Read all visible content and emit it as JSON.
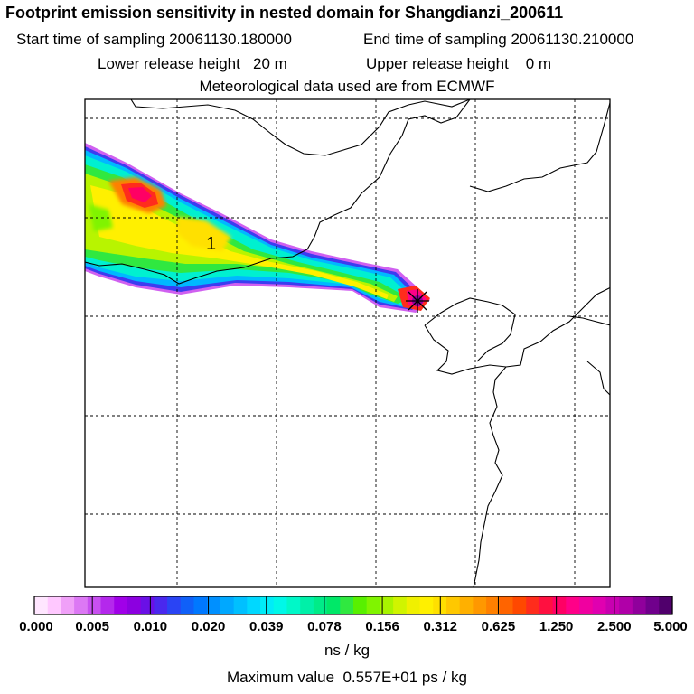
{
  "header": {
    "title": "Footprint emission sensitivity in nested domain for Shangdianzi_200611",
    "start_sampling": "Start time of sampling 20061130.180000",
    "end_sampling": "End time of sampling 20061130.210000",
    "lower_release": "Lower release height   20 m",
    "upper_release": "Upper release height    0 m",
    "met_data": "Meteorological data used are from ECMWF"
  },
  "map": {
    "contour_label": "1",
    "station_marker": "station-star-icon"
  },
  "colorbar": {
    "ticks": [
      "0.000",
      "0.005",
      "0.010",
      "0.020",
      "0.039",
      "0.078",
      "0.156",
      "0.312",
      "0.625",
      "1.250",
      "2.500",
      "5.000"
    ],
    "colors": [
      "#ffe6ff",
      "#ffc8ff",
      "#f0a0f8",
      "#dc78f4",
      "#c850f0",
      "#b428ec",
      "#a000e8",
      "#8c00e0",
      "#6a10e6",
      "#4a28ee",
      "#2a44f4",
      "#1060f8",
      "#0078ff",
      "#0090ff",
      "#00a8ff",
      "#00c0ff",
      "#00d8ff",
      "#00ecf8",
      "#00f8e8",
      "#00f8c8",
      "#00f0a8",
      "#00ec88",
      "#00e868",
      "#30e840",
      "#58f000",
      "#80f400",
      "#a8f400",
      "#d0f400",
      "#f0f000",
      "#fff000",
      "#ffe000",
      "#ffc800",
      "#ffb000",
      "#ff9800",
      "#ff8000",
      "#ff6400",
      "#ff4800",
      "#ff2c1c",
      "#ff1040",
      "#ff0064",
      "#ff0088",
      "#f000a0",
      "#e000b0",
      "#c800b0",
      "#b000a8",
      "#90009c",
      "#70008c",
      "#50006c"
    ],
    "units": "ns / kg",
    "max_value": "Maximum value  0.557E+01 ps / kg"
  }
}
